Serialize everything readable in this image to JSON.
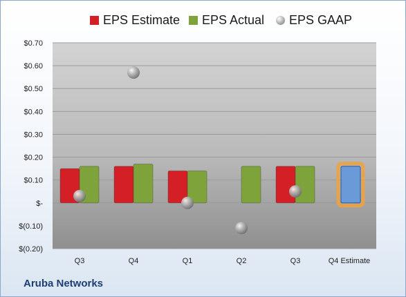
{
  "chart_data": {
    "type": "bar",
    "categories": [
      "Q3",
      "Q4",
      "Q1",
      "Q2",
      "Q3",
      "Q4 Estimate"
    ],
    "series": [
      {
        "name": "EPS Estimate",
        "color": "#d41f26",
        "values": [
          0.15,
          0.16,
          0.14,
          null,
          0.16,
          null
        ]
      },
      {
        "name": "EPS Actual",
        "color": "#7fa33b",
        "values": [
          0.16,
          0.17,
          0.14,
          0.16,
          0.16,
          null
        ]
      },
      {
        "name": "EPS GAAP",
        "color": "#9a9a9a",
        "marker": "sphere",
        "values": [
          0.03,
          0.57,
          0.0,
          -0.11,
          0.05,
          null
        ]
      }
    ],
    "estimate_bar": {
      "category": "Q4 Estimate",
      "value": 0.16,
      "color": "#6a9bd8",
      "highlight": "#f2a23b"
    },
    "yticks": [
      {
        "value": 0.7,
        "label": "$0.70"
      },
      {
        "value": 0.6,
        "label": "$0.60"
      },
      {
        "value": 0.5,
        "label": "$0.50"
      },
      {
        "value": 0.4,
        "label": "$0.40"
      },
      {
        "value": 0.3,
        "label": "$0.30"
      },
      {
        "value": 0.2,
        "label": "$0.20"
      },
      {
        "value": 0.1,
        "label": "$0.10"
      },
      {
        "value": 0.0,
        "label": "$-"
      },
      {
        "value": -0.1,
        "label": "$(0.10)"
      },
      {
        "value": -0.2,
        "label": "$(0.20)"
      }
    ],
    "ylim": [
      -0.2,
      0.7
    ],
    "grid": true,
    "legend_position": "top-center"
  },
  "legend": [
    {
      "label": "EPS Estimate",
      "color": "#d41f26",
      "shape": "square"
    },
    {
      "label": "EPS Actual",
      "color": "#7fa33b",
      "shape": "square"
    },
    {
      "label": "EPS GAAP",
      "color": "#9a9a9a",
      "shape": "circle"
    }
  ],
  "company": "Aruba Networks"
}
